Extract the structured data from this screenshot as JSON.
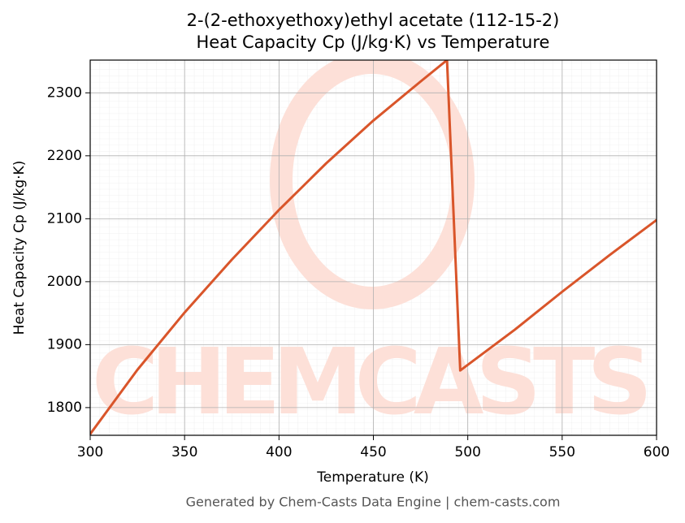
{
  "chart_data": {
    "type": "line",
    "title": "2-(2-ethoxyethoxy)ethyl acetate (112-15-2)",
    "subtitle": "Heat Capacity Cp (J/kg·K) vs Temperature",
    "x_label": "Temperature (K)",
    "y_label": "Heat Capacity Cp (J/kg·K)",
    "footer": "Generated by Chem-Casts Data Engine | chem-casts.com",
    "watermark": "CHEMCASTS",
    "x": [
      300,
      325,
      350,
      375,
      400,
      425,
      450,
      475,
      489,
      496,
      525,
      550,
      575,
      600
    ],
    "series": [
      {
        "name": "Cp",
        "color": "#d9552a",
        "values": [
          1758,
          1860,
          1951,
          2035,
          2114,
          2188,
          2256,
          2318,
          2352,
          1859,
          1924,
          1984,
          2042,
          2098
        ]
      }
    ],
    "xlim": [
      300,
      600
    ],
    "xticks": [
      300,
      350,
      400,
      450,
      500,
      550,
      600
    ],
    "ylim": [
      1756,
      2352
    ],
    "yticks": [
      1800,
      1900,
      2000,
      2100,
      2200,
      2300
    ],
    "grid": true
  }
}
